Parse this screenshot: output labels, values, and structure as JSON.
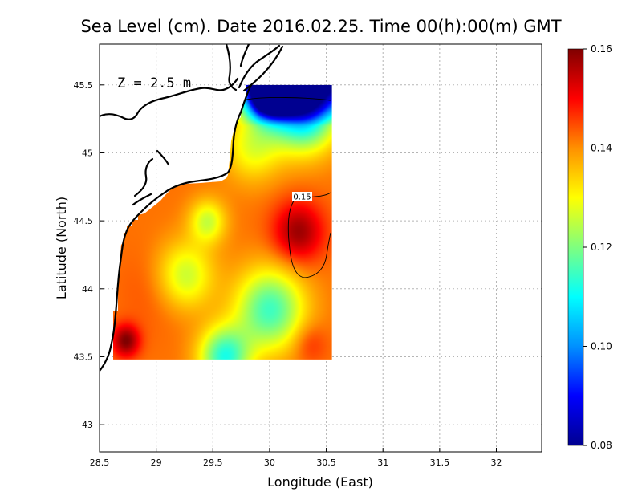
{
  "chart_data": {
    "type": "heatmap",
    "title": "Sea Level (cm). Date 2016.02.25. Time 00(h):00(m) GMT",
    "xlabel": "Longitude (East)",
    "ylabel": "Latitude (North)",
    "xlim": [
      28.5,
      32.4
    ],
    "ylim": [
      42.8,
      45.8
    ],
    "x_ticks": [
      28.5,
      29,
      29.5,
      30,
      30.5,
      31,
      31.5,
      32
    ],
    "y_ticks": [
      43,
      43.5,
      44,
      44.5,
      45,
      45.5
    ],
    "x_tick_labels": [
      "28.5",
      "29",
      "29.5",
      "30",
      "30.5",
      "31",
      "31.5",
      "32"
    ],
    "y_tick_labels": [
      "43",
      "43.5",
      "44",
      "44.5",
      "45",
      "45.5"
    ],
    "grid": true,
    "annotation": "Z = 2.5 m",
    "contour_label": "0.15",
    "colorbar": {
      "min": 0.08,
      "max": 0.16,
      "ticks": [
        0.08,
        0.1,
        0.12,
        0.14,
        0.16
      ],
      "tick_labels": [
        "0.08",
        "0.10",
        "0.12",
        "0.14",
        "0.16"
      ],
      "colors": [
        "#000090",
        "#0000ff",
        "#0090ff",
        "#00ffff",
        "#7fff7f",
        "#ffff00",
        "#ff9000",
        "#ff0000",
        "#800000"
      ]
    },
    "field_extent": {
      "lon": [
        28.62,
        30.55
      ],
      "lat": [
        43.48,
        45.5
      ]
    },
    "features": [
      {
        "lon": 30.0,
        "lat": 45.45,
        "value": 0.084,
        "radius": 0.2
      },
      {
        "lon": 30.3,
        "lat": 45.32,
        "value": 0.1,
        "radius": 0.28
      },
      {
        "lon": 30.25,
        "lat": 44.42,
        "value": 0.158,
        "radius": 0.22
      },
      {
        "lon": 28.73,
        "lat": 43.62,
        "value": 0.16,
        "radius": 0.12
      },
      {
        "lon": 29.25,
        "lat": 44.1,
        "value": 0.125,
        "radius": 0.25
      },
      {
        "lon": 29.45,
        "lat": 44.5,
        "value": 0.126,
        "radius": 0.16
      },
      {
        "lon": 30.0,
        "lat": 43.85,
        "value": 0.115,
        "radius": 0.3
      },
      {
        "lon": 29.6,
        "lat": 43.5,
        "value": 0.113,
        "radius": 0.22
      },
      {
        "lon": 30.35,
        "lat": 43.6,
        "value": 0.148,
        "radius": 0.15
      },
      {
        "lon": 29.0,
        "lat": 44.0,
        "value": 0.145,
        "radius": 0.3
      },
      {
        "lon": 29.5,
        "lat": 44.7,
        "value": 0.142,
        "radius": 0.18
      },
      {
        "lon": 29.85,
        "lat": 45.05,
        "value": 0.128,
        "radius": 0.25
      }
    ]
  }
}
